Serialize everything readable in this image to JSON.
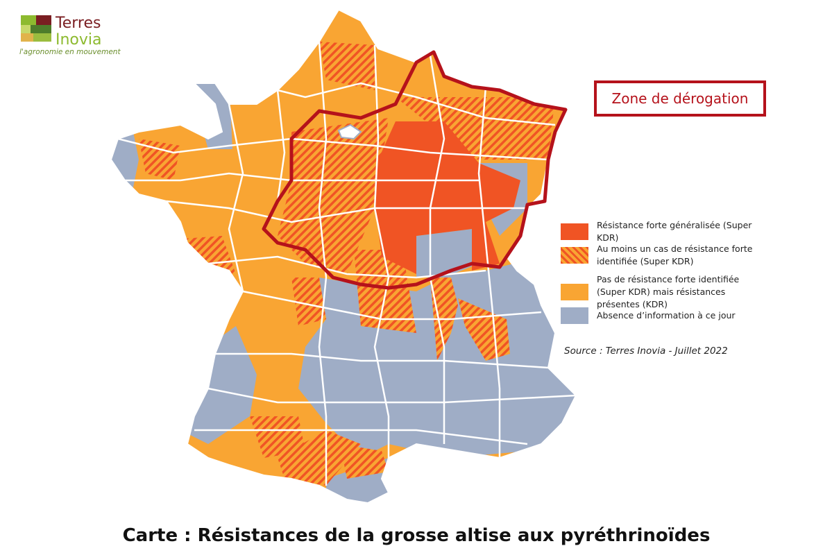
{
  "logo": {
    "line1": "Terres",
    "line2": "Inovia",
    "tagline": "l'agronomie en mouvement"
  },
  "zone_label": "Zone de dérogation",
  "legend": [
    {
      "label": "Résistance forte généralisée (Super KDR)"
    },
    {
      "label": "Au moins un cas de résistance forte identifiée (Super KDR)"
    },
    {
      "label": "Pas de résistance forte identifiée (Super KDR) mais résistances présentes (KDR)"
    },
    {
      "label": "Absence d’information à ce jour"
    }
  ],
  "source": "Source : Terres Inovia - Juillet 2022",
  "caption": "Carte : Résistances de la grosse altise aux pyréthrinoïdes"
}
